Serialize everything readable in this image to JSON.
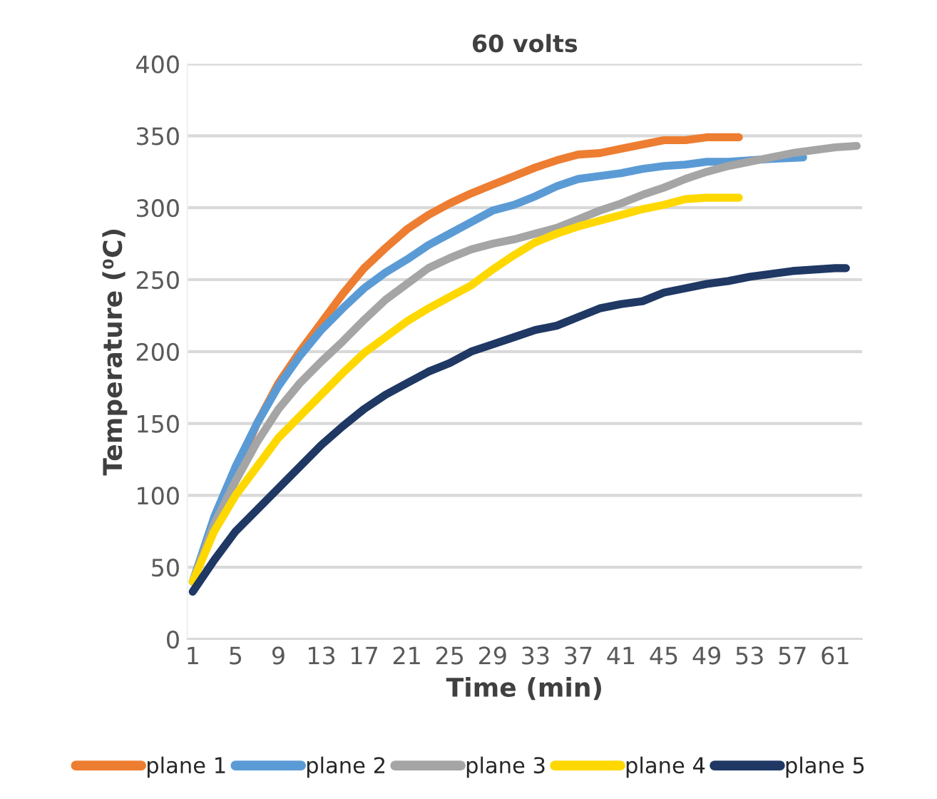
{
  "chart_data": {
    "type": "line",
    "title": "60 volts",
    "xlabel": "Time (min)",
    "ylabel": "Temperature (⁰C)",
    "xlim": [
      0.5,
      63.5
    ],
    "xticks": [
      1,
      5,
      9,
      13,
      17,
      21,
      25,
      29,
      33,
      37,
      41,
      45,
      49,
      53,
      57,
      61
    ],
    "ylim": [
      0,
      400
    ],
    "yticks": [
      0,
      50,
      100,
      150,
      200,
      250,
      300,
      350,
      400
    ],
    "grid": "y",
    "legend": "bottom",
    "marker": "none",
    "line_style": "solid",
    "series": [
      {
        "name": "plane 1",
        "color": "#ed7d31",
        "x": [
          5,
          7,
          9,
          11,
          13,
          15,
          17,
          19,
          21,
          23,
          25,
          27,
          29,
          31,
          33,
          35,
          37,
          39,
          41,
          43,
          45,
          47,
          49,
          51,
          52
        ],
        "values": [
          115,
          150,
          178,
          200,
          220,
          240,
          258,
          272,
          285,
          295,
          303,
          310,
          316,
          322,
          328,
          333,
          337,
          338,
          341,
          344,
          347,
          347,
          349,
          349,
          349
        ]
      },
      {
        "name": "plane 2",
        "color": "#5b9bd5",
        "x": [
          1,
          3,
          5,
          7,
          9,
          11,
          13,
          15,
          17,
          19,
          21,
          23,
          25,
          27,
          29,
          31,
          33,
          35,
          37,
          39,
          41,
          43,
          45,
          47,
          49,
          51,
          53,
          55,
          58
        ],
        "values": [
          40,
          85,
          120,
          150,
          176,
          197,
          215,
          230,
          244,
          255,
          264,
          274,
          282,
          290,
          298,
          302,
          308,
          315,
          320,
          322,
          324,
          327,
          329,
          330,
          332,
          332,
          333,
          334,
          335
        ]
      },
      {
        "name": "plane 3",
        "color": "#a5a5a5",
        "x": [
          1,
          3,
          5,
          7,
          9,
          11,
          13,
          15,
          17,
          19,
          21,
          23,
          25,
          27,
          29,
          31,
          33,
          35,
          37,
          39,
          41,
          43,
          45,
          47,
          49,
          51,
          53,
          55,
          57,
          59,
          61,
          63
        ],
        "values": [
          40,
          80,
          110,
          137,
          160,
          178,
          193,
          207,
          222,
          236,
          247,
          258,
          265,
          271,
          275,
          278,
          282,
          286,
          292,
          298,
          303,
          309,
          314,
          320,
          325,
          329,
          332,
          335,
          338,
          340,
          342,
          343
        ]
      },
      {
        "name": "plane 4",
        "color": "#ffd800",
        "x": [
          1,
          3,
          5,
          7,
          9,
          11,
          13,
          15,
          17,
          19,
          21,
          23,
          25,
          27,
          29,
          31,
          33,
          35,
          37,
          39,
          41,
          43,
          45,
          47,
          49,
          51,
          52
        ],
        "values": [
          40,
          75,
          100,
          120,
          140,
          155,
          170,
          185,
          199,
          210,
          221,
          230,
          238,
          246,
          257,
          267,
          276,
          282,
          287,
          291,
          295,
          299,
          302,
          306,
          307,
          307,
          307
        ]
      },
      {
        "name": "plane 5",
        "color": "#1f3864",
        "x": [
          1,
          3,
          5,
          7,
          9,
          11,
          13,
          15,
          17,
          19,
          21,
          23,
          25,
          27,
          29,
          31,
          33,
          35,
          37,
          39,
          41,
          43,
          45,
          47,
          49,
          51,
          53,
          55,
          57,
          59,
          61,
          62
        ],
        "values": [
          33,
          55,
          75,
          90,
          105,
          120,
          135,
          148,
          160,
          170,
          178,
          186,
          192,
          200,
          205,
          210,
          215,
          218,
          224,
          230,
          233,
          235,
          241,
          244,
          247,
          249,
          252,
          254,
          256,
          257,
          258,
          258
        ]
      }
    ]
  }
}
